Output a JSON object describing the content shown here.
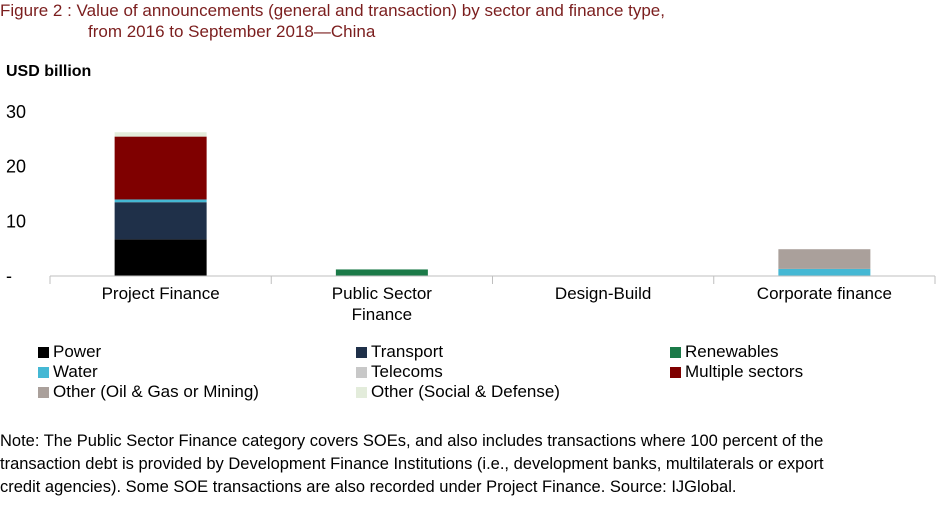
{
  "title": {
    "line1": "Figure 2 : Value of announcements (general and transaction) by sector and finance type,",
    "line2": "from 2016 to September 2018—China"
  },
  "unit_label": "USD billion",
  "chart_data": {
    "type": "bar",
    "stacked": true,
    "categories": [
      "Project Finance",
      "Public Sector Finance",
      "Design-Build",
      "Corporate finance"
    ],
    "category_lines": [
      [
        "Project Finance"
      ],
      [
        "Public Sector",
        "Finance"
      ],
      [
        "Design-Build"
      ],
      [
        "Corporate finance"
      ]
    ],
    "y_ticks": [
      {
        "value": 0,
        "label": "-"
      },
      {
        "value": 10,
        "label": "10"
      },
      {
        "value": 20,
        "label": "20"
      },
      {
        "value": 30,
        "label": "30"
      }
    ],
    "ylim": [
      0,
      30
    ],
    "grid": false,
    "legend_position": "bottom",
    "series": [
      {
        "name": "Power",
        "color": "#000000",
        "values": [
          6.7,
          0,
          0,
          0
        ]
      },
      {
        "name": "Transport",
        "color": "#1f3049",
        "values": [
          6.8,
          0,
          0,
          0
        ]
      },
      {
        "name": "Renewables",
        "color": "#1b7a48",
        "values": [
          0,
          1.2,
          0,
          0
        ]
      },
      {
        "name": "Water",
        "color": "#45b8d4",
        "values": [
          0.5,
          0,
          0,
          1.3
        ]
      },
      {
        "name": "Telecoms",
        "color": "#c8c8c8",
        "values": [
          0,
          0,
          0,
          0
        ]
      },
      {
        "name": "Multiple sectors",
        "color": "#7f0000",
        "values": [
          11.5,
          0,
          0,
          0
        ]
      },
      {
        "name": "Other (Oil & Gas or Mining)",
        "color": "#aaa09b",
        "values": [
          0,
          0,
          0,
          3.6
        ]
      },
      {
        "name": "Other (Social & Defense)",
        "color": "#e3ecdb",
        "values": [
          0.8,
          0,
          0,
          0
        ]
      }
    ]
  },
  "note": "Note: The Public Sector Finance category covers SOEs, and also includes transactions where 100 percent of the transaction debt is provided by Development Finance Institutions (i.e., development banks, multilaterals or export credit agencies). Some SOE transactions are also recorded under Project Finance. Source: IJGlobal."
}
